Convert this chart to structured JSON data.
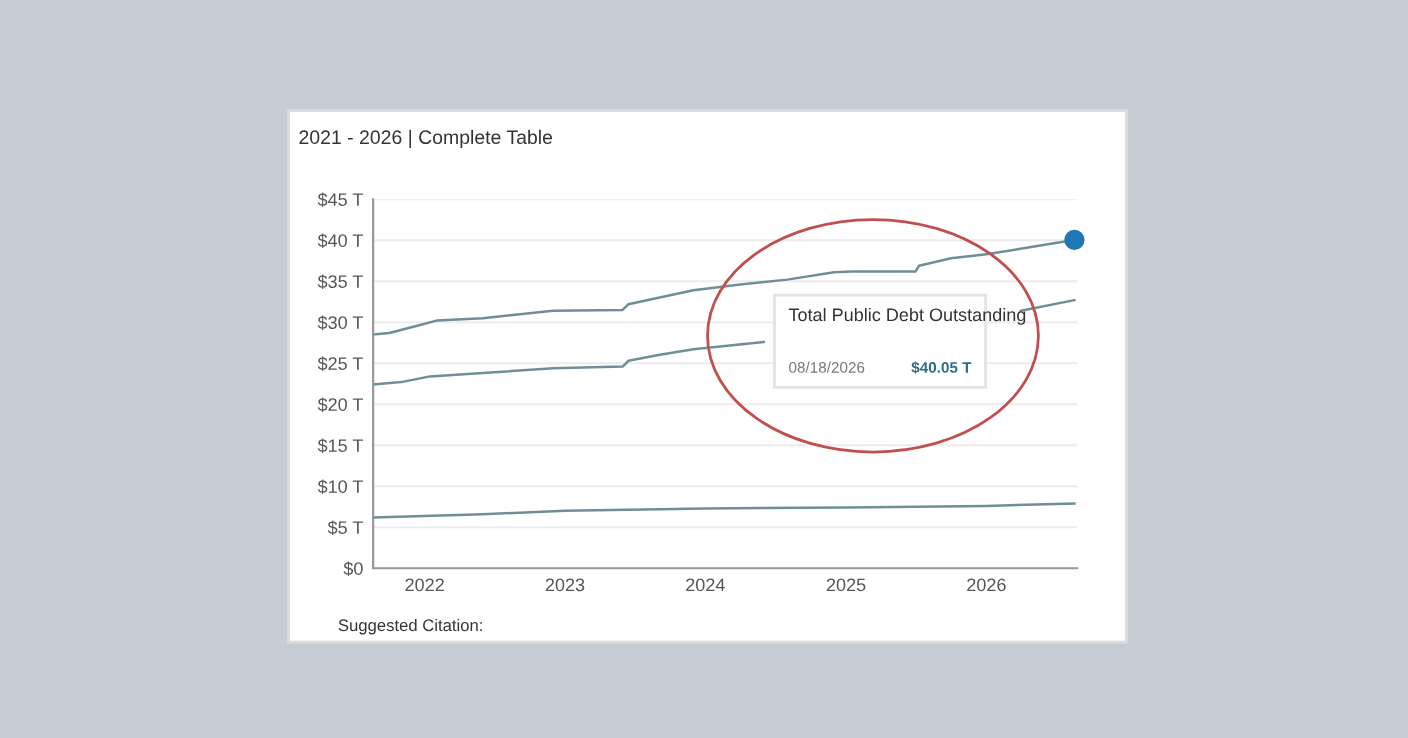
{
  "chart_data": {
    "type": "line",
    "title": "2021 - 2026 | Complete Table",
    "annotations": [
      "Total Public Debt Outstanding",
      "08/18/2026",
      "$40.05 T",
      "Suggested Citation:"
    ],
    "xlim": [
      "2021-08-20",
      "2026-08-25"
    ],
    "ylim": [
      0,
      45
    ],
    "xticks": [
      {
        "value": "2022-01-01",
        "label": "2022"
      },
      {
        "value": "2023-01-01",
        "label": "2023"
      },
      {
        "value": "2024-01-01",
        "label": "2024"
      },
      {
        "value": "2025-01-01",
        "label": "2025"
      },
      {
        "value": "2026-01-01",
        "label": "2026"
      }
    ],
    "yticks": [
      {
        "value": 0,
        "label": "$0"
      },
      {
        "value": 5,
        "label": "$5 T"
      },
      {
        "value": 10,
        "label": "$10 T"
      },
      {
        "value": 15,
        "label": "$15 T"
      },
      {
        "value": 20,
        "label": "$20 T"
      },
      {
        "value": 25,
        "label": "$25 T"
      },
      {
        "value": 30,
        "label": "$30 T"
      },
      {
        "value": 35,
        "label": "$35 T"
      },
      {
        "value": 40,
        "label": "$40 T"
      },
      {
        "value": 45,
        "label": "$45 T"
      }
    ],
    "grid": "y",
    "legend": false,
    "marker": "none",
    "line_style": "solid",
    "series": [
      {
        "color": "#6f8f95",
        "x": [
          "2021-08-20",
          "2021-10-01",
          "2021-12-15",
          "2022-02-01",
          "2022-06-01",
          "2022-12-01",
          "2023-05-31",
          "2023-06-15",
          "2023-09-01",
          "2023-12-01",
          "2024-04-01",
          "2024-08-01",
          "2024-12-01",
          "2025-01-15",
          "2025-07-01",
          "2025-07-10",
          "2025-10-01",
          "2026-01-01",
          "2026-05-01",
          "2026-08-18"
        ],
        "values": [
          28.5,
          28.7,
          29.6,
          30.2,
          30.5,
          31.4,
          31.5,
          32.2,
          33.0,
          33.9,
          34.6,
          35.2,
          36.1,
          36.2,
          36.2,
          36.9,
          37.8,
          38.3,
          39.2,
          40.05
        ]
      },
      {
        "color": "#6f8f95",
        "x": [
          "2021-08-20",
          "2021-11-01",
          "2022-01-15",
          "2022-06-01",
          "2022-12-01",
          "2023-05-31",
          "2023-06-15",
          "2023-09-01",
          "2023-12-01",
          "2024-06-01",
          "2024-12-01",
          "2025-06-01",
          "2025-12-01",
          "2026-04-01",
          "2026-08-18"
        ],
        "values": [
          22.4,
          22.7,
          23.4,
          23.8,
          24.4,
          24.6,
          25.3,
          26.0,
          26.7,
          27.6,
          null,
          null,
          null,
          31.4,
          32.7
        ]
      },
      {
        "color": "#6f8f95",
        "x": [
          "2021-08-20",
          "2022-06-01",
          "2023-01-01",
          "2024-01-01",
          "2025-01-01",
          "2026-01-01",
          "2026-08-18"
        ],
        "values": [
          6.2,
          6.6,
          7.0,
          7.3,
          7.4,
          7.6,
          7.9
        ]
      },
      {
        "type": "scatter",
        "marker": "circle",
        "color": "#1f77b4",
        "x": [
          "2026-08-18"
        ],
        "values": [
          40.05
        ]
      }
    ]
  }
}
